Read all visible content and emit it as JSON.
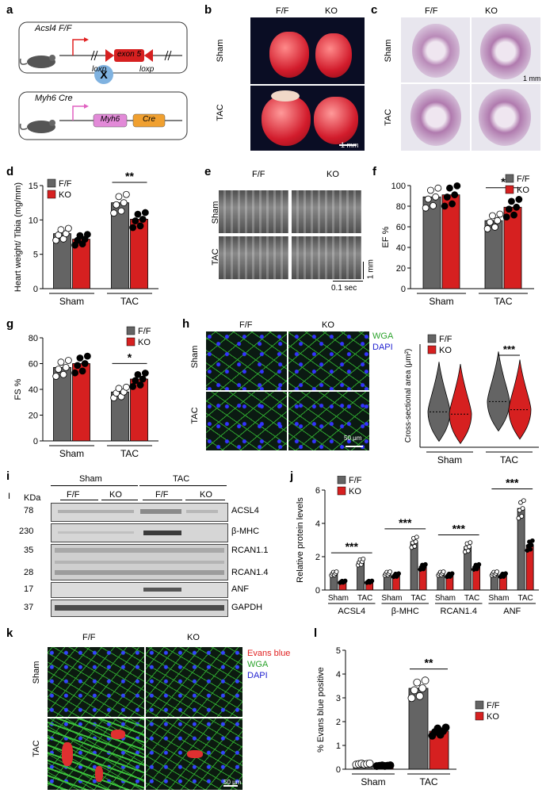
{
  "colors": {
    "ff": "#646464",
    "ko": "#d62020",
    "green": "#2aa22a",
    "red": "#e02020",
    "blue": "#2020d0"
  },
  "panels": {
    "a": {
      "label": "a",
      "acsl4": "Acsl4 F/F",
      "exon": "exon 5",
      "loxp1": "loxp",
      "loxp2": "loxp",
      "x": "X",
      "myh6cre": "Myh6 Cre",
      "myh6": "Myh6",
      "cre": "Cre"
    },
    "b": {
      "label": "b",
      "ff": "F/F",
      "ko": "KO",
      "sham": "Sham",
      "tac": "TAC",
      "scale": "1 mm"
    },
    "c": {
      "label": "c",
      "ff": "F/F",
      "ko": "KO",
      "sham": "Sham",
      "tac": "TAC",
      "scale": "1 mm"
    },
    "e": {
      "label": "e",
      "ff": "F/F",
      "ko": "KO",
      "sham": "Sham",
      "tac": "TAC",
      "scale_v": "1 mm",
      "scale_h": "0.1 sec"
    },
    "h": {
      "label": "h",
      "ff": "F/F",
      "ko": "KO",
      "sham": "Sham",
      "tac": "TAC",
      "wga": "WGA",
      "dapi": "DAPI",
      "scale": "50 μm"
    },
    "i": {
      "label": "i",
      "mark": "I",
      "kda": "KDa",
      "sham": "Sham",
      "tac": "TAC",
      "lanes": [
        "F/F",
        "KO",
        "F/F",
        "KO"
      ],
      "markers": [
        "78",
        "230",
        "35",
        "28",
        "17",
        "37"
      ],
      "proteins": [
        "ACSL4",
        "β-MHC",
        "RCAN1.1",
        "RCAN1.4",
        "ANF",
        "GAPDH"
      ]
    },
    "k": {
      "label": "k",
      "ff": "F/F",
      "ko": "KO",
      "sham": "Sham",
      "tac": "TAC",
      "evans": "Evans blue",
      "wga": "WGA",
      "dapi": "DAPI",
      "scale": "50 μm"
    }
  },
  "chart_data": [
    {
      "panel": "d",
      "type": "bar",
      "ylabel": "Heart weight/ Tibia (mg/mm)",
      "ylim": [
        0,
        15
      ],
      "yticks": [
        0,
        5,
        10,
        15
      ],
      "groups": [
        "Sham",
        "TAC"
      ],
      "legend": [
        "F/F",
        "KO"
      ],
      "series": [
        {
          "name": "F/F",
          "values": [
            8.0,
            12.5
          ]
        },
        {
          "name": "KO",
          "values": [
            7.2,
            10.1
          ]
        }
      ],
      "sig": [
        {
          "group": "TAC",
          "text": "**"
        }
      ]
    },
    {
      "panel": "f",
      "type": "bar",
      "ylabel": "EF %",
      "ylim": [
        0,
        100
      ],
      "yticks": [
        0,
        20,
        40,
        60,
        80,
        100
      ],
      "groups": [
        "Sham",
        "TAC"
      ],
      "legend": [
        "F/F",
        "KO"
      ],
      "series": [
        {
          "name": "F/F",
          "values": [
            89,
            66
          ]
        },
        {
          "name": "KO",
          "values": [
            91,
            79
          ]
        }
      ],
      "sig": [
        {
          "group": "TAC",
          "text": "*"
        }
      ]
    },
    {
      "panel": "g",
      "type": "bar",
      "ylabel": "FS %",
      "ylim": [
        0,
        80
      ],
      "yticks": [
        0,
        20,
        40,
        60,
        80
      ],
      "groups": [
        "Sham",
        "TAC"
      ],
      "legend": [
        "F/F",
        "KO"
      ],
      "series": [
        {
          "name": "F/F",
          "values": [
            57,
            38
          ]
        },
        {
          "name": "KO",
          "values": [
            60,
            48
          ]
        }
      ],
      "sig": [
        {
          "group": "TAC",
          "text": "*"
        }
      ]
    },
    {
      "panel": "h",
      "type": "violin",
      "ylabel": "Cross-sectional area (μm²)",
      "groups": [
        "Sham",
        "TAC"
      ],
      "legend": [
        "F/F",
        "KO"
      ],
      "series": [
        {
          "name": "F/F",
          "medians": [
            240,
            310
          ]
        },
        {
          "name": "KO",
          "medians": [
            225,
            255
          ]
        }
      ],
      "sig": [
        {
          "group": "TAC",
          "text": "***"
        }
      ]
    },
    {
      "panel": "j",
      "type": "bar",
      "ylabel": "Relative protein levels",
      "ylim": [
        0,
        6
      ],
      "yticks": [
        0,
        2,
        4,
        6
      ],
      "groups": [
        "ACSL4",
        "β-MHC",
        "RCAN1.4",
        "ANF"
      ],
      "subgroups": [
        "Sham",
        "TAC"
      ],
      "legend": [
        "F/F",
        "KO"
      ],
      "series": [
        {
          "name": "F/F",
          "values": [
            1.0,
            1.7,
            1.0,
            2.9,
            1.0,
            2.6,
            1.0,
            4.9
          ]
        },
        {
          "name": "KO",
          "values": [
            0.5,
            0.5,
            0.9,
            1.4,
            0.9,
            1.4,
            0.9,
            2.7
          ]
        }
      ],
      "sig": [
        {
          "group": "ACSL4",
          "text": "***"
        },
        {
          "group": "β-MHC",
          "text": "***"
        },
        {
          "group": "RCAN1.4",
          "text": "***"
        },
        {
          "group": "ANF",
          "text": "***"
        }
      ]
    },
    {
      "panel": "l",
      "type": "bar",
      "ylabel": "% Evans blue positive",
      "ylim": [
        0,
        5
      ],
      "yticks": [
        0,
        1,
        2,
        3,
        4,
        5
      ],
      "groups": [
        "Sham",
        "TAC"
      ],
      "legend": [
        "F/F",
        "KO"
      ],
      "series": [
        {
          "name": "F/F",
          "values": [
            0.22,
            3.4
          ]
        },
        {
          "name": "KO",
          "values": [
            0.15,
            1.6
          ]
        }
      ],
      "sig": [
        {
          "group": "TAC",
          "text": "**"
        }
      ]
    }
  ]
}
